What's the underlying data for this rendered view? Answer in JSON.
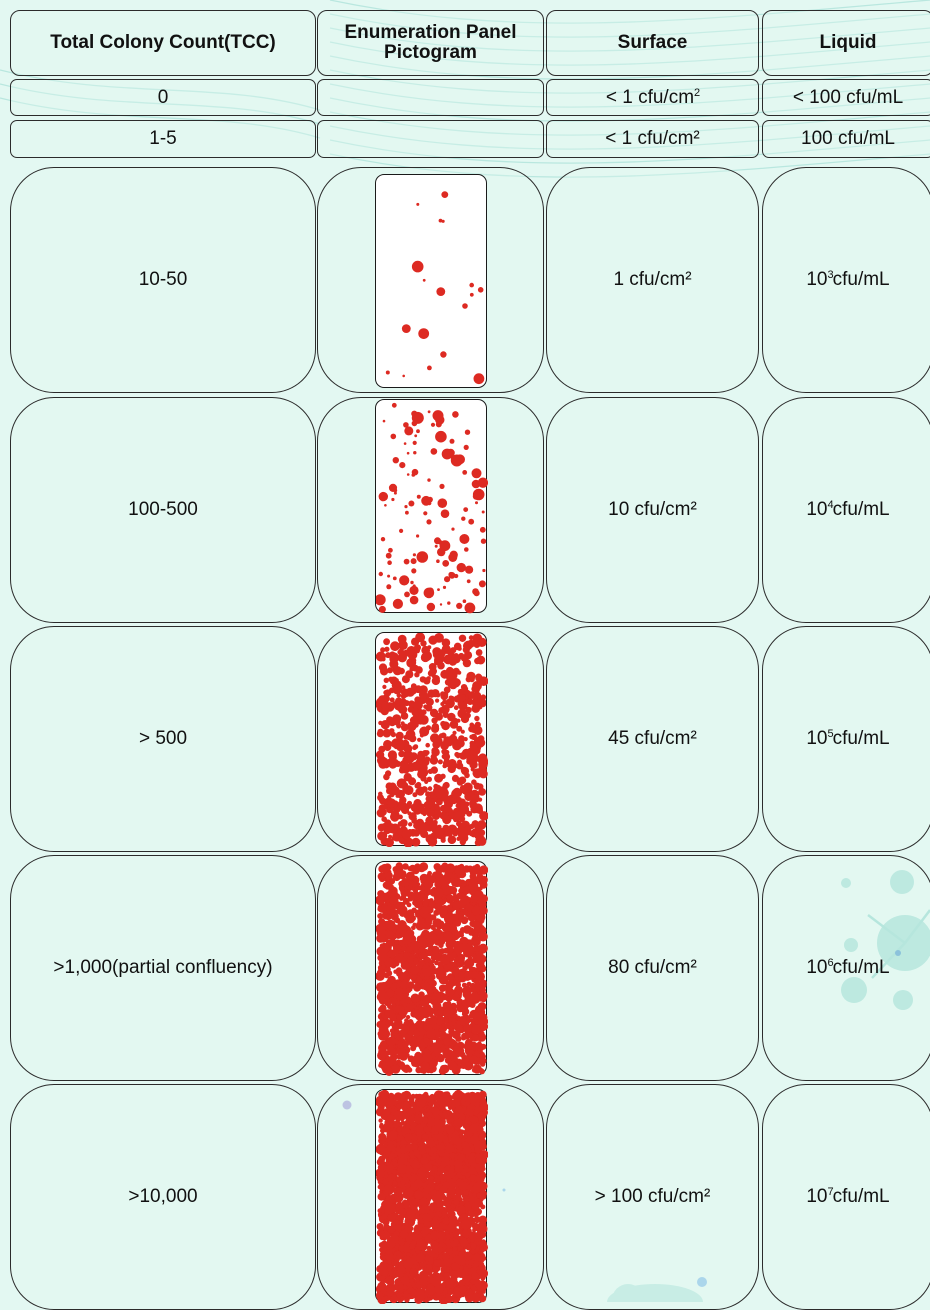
{
  "header": {
    "tcc": "Total Colony Count(TCC)",
    "pictogram": "Enumeration Panel\nPictogram",
    "surface": "Surface",
    "liquid": "Liquid"
  },
  "rows": [
    {
      "tcc": "0",
      "surface_prefix": "< 1 cfu/cm",
      "surface_sup": "2",
      "liquid": "< 100 cfu/mL",
      "density": 0
    },
    {
      "tcc": "1-5",
      "surface": "< 1 cfu/cm²",
      "liquid": "100 cfu/mL",
      "density": 0
    },
    {
      "tcc": "10-50",
      "surface": "1 cfu/cm²",
      "liquid_base": "10",
      "liquid_exp": "3",
      "liquid_unit": "cfu/mL",
      "density": 18
    },
    {
      "tcc": "100-500",
      "surface": "10 cfu/cm²",
      "liquid_base": "10",
      "liquid_exp": "4",
      "liquid_unit": "cfu/mL",
      "density": 130
    },
    {
      "tcc": "> 500",
      "surface": "45 cfu/cm²",
      "liquid_base": "10",
      "liquid_exp": "5",
      "liquid_unit": "cfu/mL",
      "density": 700
    },
    {
      "tcc": ">1,000(partial confluency)",
      "surface": "80 cfu/cm²",
      "liquid_base": "10",
      "liquid_exp": "6",
      "liquid_unit": "cfu/mL",
      "density": 1400
    },
    {
      "tcc": ">10,000",
      "surface": "> 100 cfu/cm²",
      "liquid_base": "10",
      "liquid_exp": "7",
      "liquid_unit": "cfu/mL",
      "density": 2200
    }
  ],
  "colors": {
    "background": "#e3f8f2",
    "colony": "#dd2a22",
    "border": "#2b2b2b"
  }
}
